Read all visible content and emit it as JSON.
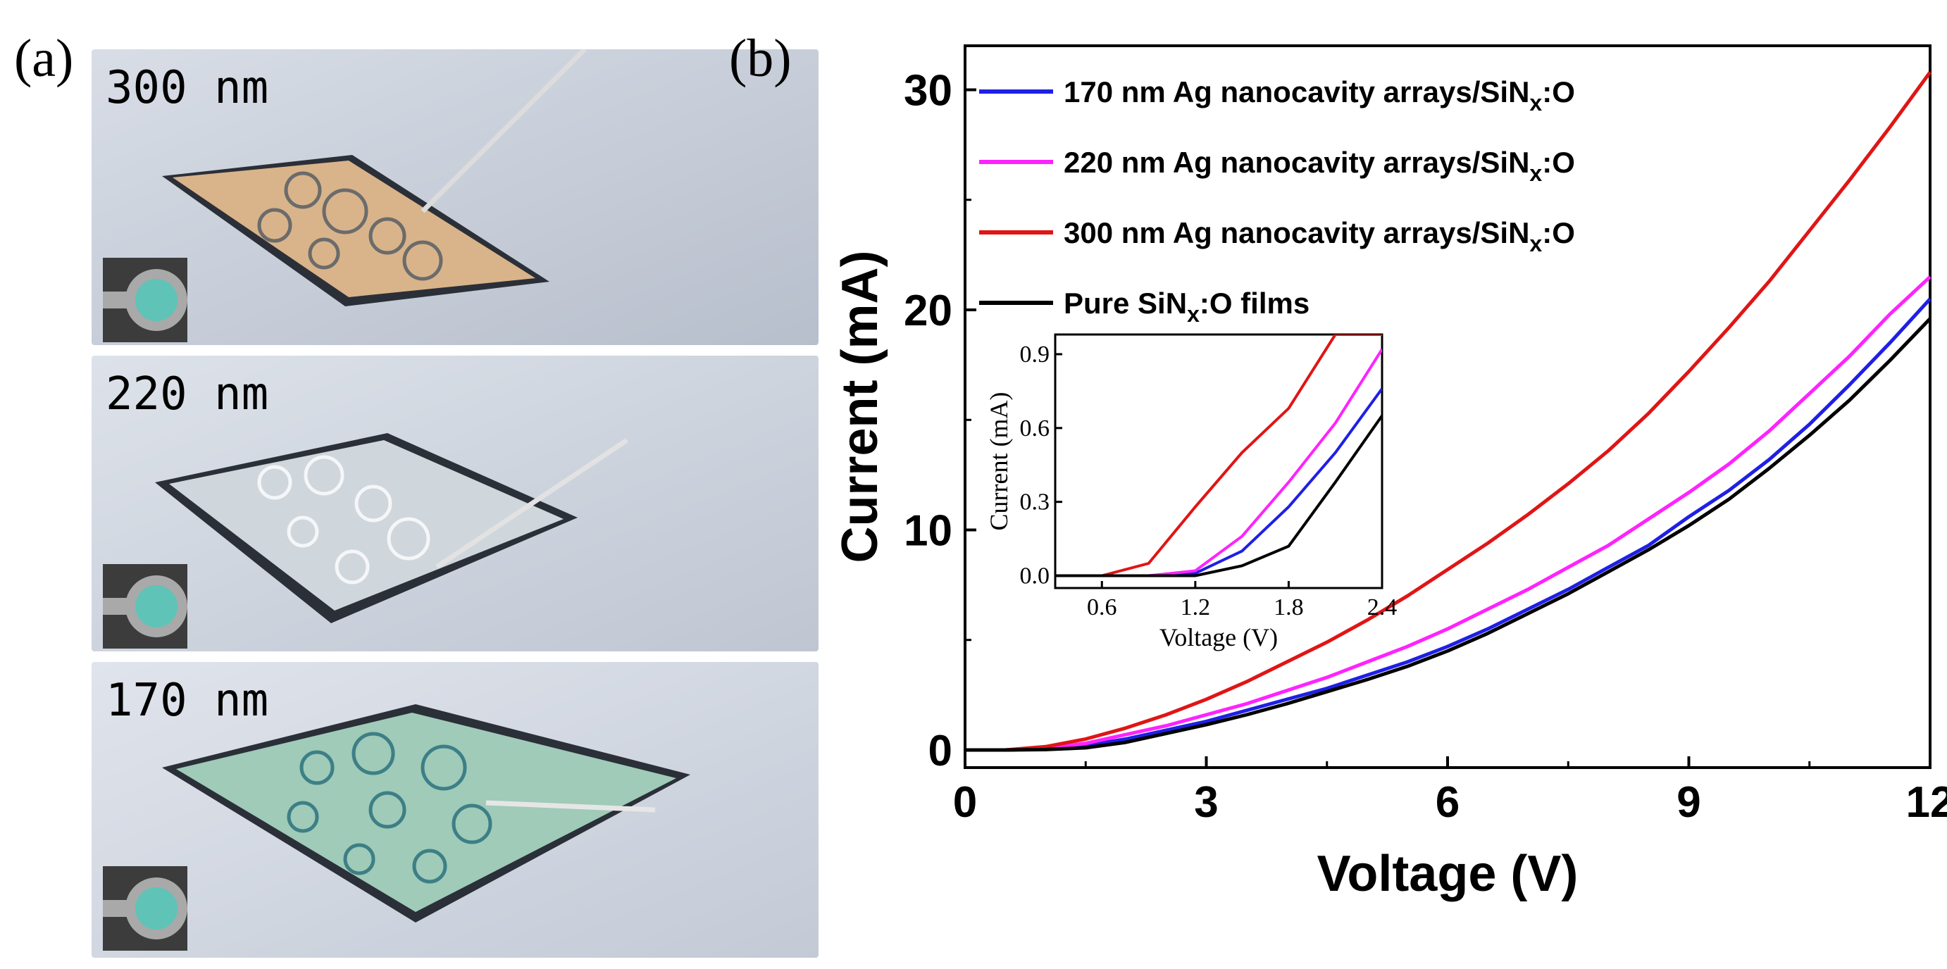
{
  "panel_a": {
    "label": "(a)",
    "photos": [
      {
        "label": "300 nm",
        "film_color": "#d9b48a"
      },
      {
        "label": "220 nm",
        "film_color": "#cfd6dc"
      },
      {
        "label": "170 nm",
        "film_color": "#9fcbb8"
      }
    ]
  },
  "panel_b": {
    "label": "(b)"
  },
  "chart_data": {
    "type": "line",
    "xlabel": "Voltage (V)",
    "ylabel": "Current (mA)",
    "xlim": [
      0,
      12
    ],
    "ylim": [
      -0.8,
      32
    ],
    "xticks": [
      "0",
      "3",
      "6",
      "9",
      "12"
    ],
    "yticks": [
      "0",
      "10",
      "20",
      "30"
    ],
    "legend_position": "top-left",
    "legend": [
      {
        "prefix": "170 nm Ag nanocavity arrays/SiN",
        "sub": "x",
        "suffix": ":O",
        "color": "#1f1fe6"
      },
      {
        "prefix": "220 nm Ag nanocavity arrays/SiN",
        "sub": "x",
        "suffix": ":O",
        "color": "#ff22ff"
      },
      {
        "prefix": "300 nm Ag nanocavity arrays/SiN",
        "sub": "x",
        "suffix": ":O",
        "color": "#e01515"
      },
      {
        "prefix": "Pure SiN",
        "sub": "x",
        "suffix": ":O films",
        "color": "#000000"
      }
    ],
    "x": [
      0,
      0.5,
      1,
      1.5,
      2,
      2.5,
      3,
      3.5,
      4,
      4.5,
      5,
      5.5,
      6,
      6.5,
      7,
      7.5,
      8,
      8.5,
      9,
      9.5,
      10,
      10.5,
      11,
      11.5,
      12
    ],
    "series": [
      {
        "name": "170 nm Ag nanocavity arrays/SiNx:O",
        "color": "#1f1fe6",
        "values": [
          0,
          0,
          0.05,
          0.2,
          0.5,
          0.9,
          1.3,
          1.8,
          2.3,
          2.8,
          3.4,
          4.0,
          4.7,
          5.5,
          6.4,
          7.3,
          8.3,
          9.3,
          10.6,
          11.8,
          13.2,
          14.8,
          16.6,
          18.5,
          20.5
        ]
      },
      {
        "name": "220 nm Ag nanocavity arrays/SiNx:O",
        "color": "#ff22ff",
        "values": [
          0,
          0,
          0.08,
          0.3,
          0.7,
          1.1,
          1.6,
          2.1,
          2.7,
          3.3,
          4.0,
          4.7,
          5.5,
          6.4,
          7.3,
          8.3,
          9.3,
          10.5,
          11.7,
          13.0,
          14.5,
          16.2,
          17.9,
          19.8,
          21.5
        ]
      },
      {
        "name": "300 nm Ag nanocavity arrays/SiNx:O",
        "color": "#e01515",
        "values": [
          0,
          0,
          0.15,
          0.5,
          1.0,
          1.6,
          2.3,
          3.1,
          4.0,
          4.9,
          5.9,
          7.0,
          8.2,
          9.4,
          10.7,
          12.1,
          13.6,
          15.3,
          17.2,
          19.2,
          21.3,
          23.6,
          25.9,
          28.3,
          30.8
        ]
      },
      {
        "name": "Pure SiNx:O films",
        "color": "#000000",
        "values": [
          0,
          0,
          0.02,
          0.1,
          0.35,
          0.75,
          1.15,
          1.6,
          2.1,
          2.65,
          3.2,
          3.8,
          4.5,
          5.3,
          6.2,
          7.1,
          8.1,
          9.1,
          10.2,
          11.4,
          12.8,
          14.3,
          15.9,
          17.7,
          19.6
        ]
      }
    ],
    "inset": {
      "xlabel": "Voltage (V)",
      "ylabel": "Current (mA)",
      "xlim": [
        0.3,
        2.4
      ],
      "ylim": [
        -0.05,
        0.98
      ],
      "xticks": [
        "0.6",
        "1.2",
        "1.8",
        "2.4"
      ],
      "yticks": [
        "0.0",
        "0.3",
        "0.6",
        "0.9"
      ],
      "x": [
        0.3,
        0.6,
        0.9,
        1.2,
        1.5,
        1.8,
        2.1,
        2.4
      ],
      "series": [
        {
          "name": "170 nm",
          "color": "#1f1fe6",
          "values": [
            0,
            0,
            0,
            0.01,
            0.1,
            0.28,
            0.5,
            0.76
          ]
        },
        {
          "name": "220 nm",
          "color": "#ff22ff",
          "values": [
            0,
            0,
            0,
            0.02,
            0.16,
            0.38,
            0.62,
            0.92
          ]
        },
        {
          "name": "300 nm",
          "color": "#e01515",
          "values": [
            0,
            0,
            0.05,
            0.28,
            0.5,
            0.68,
            0.98,
            0.98
          ]
        },
        {
          "name": "Pure",
          "color": "#000000",
          "values": [
            0,
            0,
            0,
            0,
            0.04,
            0.12,
            0.38,
            0.65
          ]
        }
      ]
    }
  }
}
